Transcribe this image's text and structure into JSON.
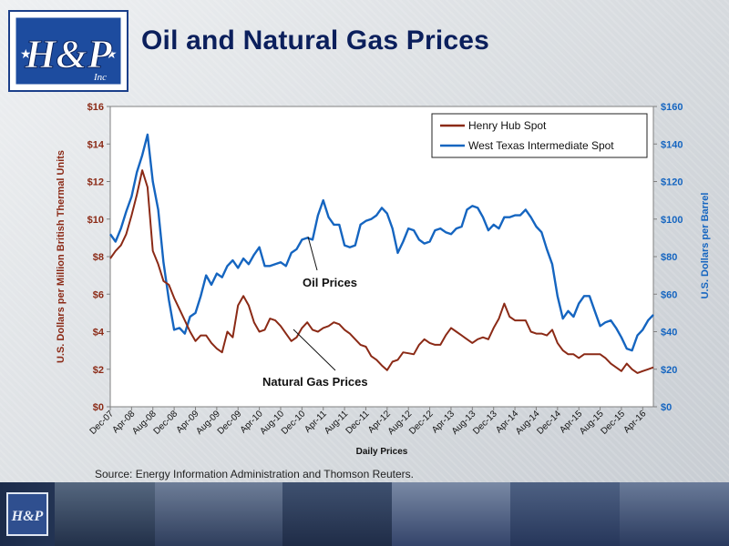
{
  "title": "Oil and Natural Gas Prices",
  "logo": {
    "main_text": "H&P",
    "small_text": "Inc"
  },
  "source": "Source:  Energy Information Administration and Thomson Reuters.",
  "colors": {
    "gas": "#8b2a16",
    "oil": "#1565c0",
    "title": "#0b1f5c",
    "left_axis": "#8b2a16",
    "right_axis": "#1565c0"
  },
  "annotations": {
    "oil": "Oil Prices",
    "gas": "Natural Gas Prices"
  },
  "chart_data": {
    "type": "line",
    "xlabel": "Daily Prices",
    "ylabel_left": "U.S. Dollars per Million British Thermal Units",
    "ylabel_right": "U.S. Dollars per Barrel",
    "ylim_left": [
      0,
      16
    ],
    "ylim_right": [
      0,
      160
    ],
    "yticks_left": [
      "$0",
      "$2",
      "$4",
      "$6",
      "$8",
      "$10",
      "$12",
      "$14",
      "$16"
    ],
    "yticks_right": [
      "$0",
      "$20",
      "$40",
      "$60",
      "$80",
      "$100",
      "$120",
      "$140",
      "$160"
    ],
    "x_ticks": [
      "Dec-07",
      "Apr-08",
      "Aug-08",
      "Dec-08",
      "Apr-09",
      "Aug-09",
      "Dec-09",
      "Apr-10",
      "Aug-10",
      "Dec-10",
      "Apr-11",
      "Aug-11",
      "Dec-11",
      "Apr-12",
      "Aug-12",
      "Dec-12",
      "Apr-13",
      "Aug-13",
      "Dec-13",
      "Apr-14",
      "Aug-14",
      "Dec-14",
      "Apr-15",
      "Aug-15",
      "Dec-15",
      "Apr-16"
    ],
    "legend_position": "top-right",
    "series": [
      {
        "name": "Henry Hub Spot",
        "axis": "left",
        "x": [
          "Dec-07",
          "Jan-08",
          "Feb-08",
          "Mar-08",
          "Apr-08",
          "May-08",
          "Jun-08",
          "Jul-08",
          "Aug-08",
          "Sep-08",
          "Oct-08",
          "Nov-08",
          "Dec-08",
          "Jan-09",
          "Feb-09",
          "Mar-09",
          "Apr-09",
          "May-09",
          "Jun-09",
          "Jul-09",
          "Aug-09",
          "Sep-09",
          "Oct-09",
          "Nov-09",
          "Dec-09",
          "Jan-10",
          "Feb-10",
          "Mar-10",
          "Apr-10",
          "May-10",
          "Jun-10",
          "Jul-10",
          "Aug-10",
          "Sep-10",
          "Oct-10",
          "Nov-10",
          "Dec-10",
          "Jan-11",
          "Feb-11",
          "Mar-11",
          "Apr-11",
          "May-11",
          "Jun-11",
          "Jul-11",
          "Aug-11",
          "Sep-11",
          "Oct-11",
          "Nov-11",
          "Dec-11",
          "Jan-12",
          "Feb-12",
          "Mar-12",
          "Apr-12",
          "May-12",
          "Jun-12",
          "Jul-12",
          "Aug-12",
          "Sep-12",
          "Oct-12",
          "Nov-12",
          "Dec-12",
          "Jan-13",
          "Feb-13",
          "Mar-13",
          "Apr-13",
          "May-13",
          "Jun-13",
          "Jul-13",
          "Aug-13",
          "Sep-13",
          "Oct-13",
          "Nov-13",
          "Dec-13",
          "Jan-14",
          "Feb-14",
          "Mar-14",
          "Apr-14",
          "May-14",
          "Jun-14",
          "Jul-14",
          "Aug-14",
          "Sep-14",
          "Oct-14",
          "Nov-14",
          "Dec-14",
          "Jan-15",
          "Feb-15",
          "Mar-15",
          "Apr-15",
          "May-15",
          "Jun-15",
          "Jul-15",
          "Aug-15",
          "Sep-15",
          "Oct-15",
          "Nov-15",
          "Dec-15",
          "Jan-16",
          "Feb-16",
          "Mar-16",
          "Apr-16",
          "May-16",
          "Jun-16"
        ],
        "values": [
          7.9,
          8.3,
          8.6,
          9.2,
          10.2,
          11.3,
          12.6,
          11.7,
          8.3,
          7.6,
          6.7,
          6.5,
          5.8,
          5.2,
          4.6,
          4.0,
          3.5,
          3.8,
          3.8,
          3.4,
          3.1,
          2.9,
          4.0,
          3.7,
          5.4,
          5.9,
          5.4,
          4.5,
          4.0,
          4.1,
          4.7,
          4.6,
          4.3,
          3.9,
          3.5,
          3.7,
          4.2,
          4.5,
          4.1,
          4.0,
          4.2,
          4.3,
          4.5,
          4.4,
          4.1,
          3.9,
          3.6,
          3.3,
          3.2,
          2.7,
          2.5,
          2.2,
          1.95,
          2.4,
          2.5,
          2.9,
          2.85,
          2.8,
          3.3,
          3.6,
          3.4,
          3.3,
          3.3,
          3.8,
          4.2,
          4.0,
          3.8,
          3.6,
          3.4,
          3.6,
          3.7,
          3.6,
          4.2,
          4.7,
          5.5,
          4.8,
          4.6,
          4.6,
          4.6,
          4.0,
          3.9,
          3.9,
          3.8,
          4.1,
          3.4,
          3.0,
          2.8,
          2.8,
          2.6,
          2.8,
          2.8,
          2.8,
          2.8,
          2.6,
          2.3,
          2.1,
          1.9,
          2.3,
          2.0,
          1.8,
          1.9,
          2.0,
          2.1
        ]
      },
      {
        "name": "West Texas Intermediate Spot",
        "axis": "right",
        "x": [
          "Dec-07",
          "Jan-08",
          "Feb-08",
          "Mar-08",
          "Apr-08",
          "May-08",
          "Jun-08",
          "Jul-08",
          "Aug-08",
          "Sep-08",
          "Oct-08",
          "Nov-08",
          "Dec-08",
          "Jan-09",
          "Feb-09",
          "Mar-09",
          "Apr-09",
          "May-09",
          "Jun-09",
          "Jul-09",
          "Aug-09",
          "Sep-09",
          "Oct-09",
          "Nov-09",
          "Dec-09",
          "Jan-10",
          "Feb-10",
          "Mar-10",
          "Apr-10",
          "May-10",
          "Jun-10",
          "Jul-10",
          "Aug-10",
          "Sep-10",
          "Oct-10",
          "Nov-10",
          "Dec-10",
          "Jan-11",
          "Feb-11",
          "Mar-11",
          "Apr-11",
          "May-11",
          "Jun-11",
          "Jul-11",
          "Aug-11",
          "Sep-11",
          "Oct-11",
          "Nov-11",
          "Dec-11",
          "Jan-12",
          "Feb-12",
          "Mar-12",
          "Apr-12",
          "May-12",
          "Jun-12",
          "Jul-12",
          "Aug-12",
          "Sep-12",
          "Oct-12",
          "Nov-12",
          "Dec-12",
          "Jan-13",
          "Feb-13",
          "Mar-13",
          "Apr-13",
          "May-13",
          "Jun-13",
          "Jul-13",
          "Aug-13",
          "Sep-13",
          "Oct-13",
          "Nov-13",
          "Dec-13",
          "Jan-14",
          "Feb-14",
          "Mar-14",
          "Apr-14",
          "May-14",
          "Jun-14",
          "Jul-14",
          "Aug-14",
          "Sep-14",
          "Oct-14",
          "Nov-14",
          "Dec-14",
          "Jan-15",
          "Feb-15",
          "Mar-15",
          "Apr-15",
          "May-15",
          "Jun-15",
          "Jul-15",
          "Aug-15",
          "Sep-15",
          "Oct-15",
          "Nov-15",
          "Dec-15",
          "Jan-16",
          "Feb-16",
          "Mar-16",
          "Apr-16",
          "May-16",
          "Jun-16"
        ],
        "values": [
          92,
          88,
          95,
          104,
          112,
          125,
          134,
          145,
          120,
          105,
          77,
          57,
          41,
          42,
          39,
          48,
          50,
          59,
          70,
          65,
          71,
          69,
          75,
          78,
          74,
          79,
          76,
          81,
          85,
          75,
          75,
          76,
          77,
          75,
          82,
          84,
          89,
          90,
          89,
          102,
          110,
          101,
          97,
          97,
          86,
          85,
          86,
          97,
          99,
          100,
          102,
          106,
          103,
          95,
          82,
          88,
          95,
          94,
          89,
          87,
          88,
          94,
          95,
          93,
          92,
          95,
          96,
          105,
          107,
          106,
          101,
          94,
          97,
          95,
          101,
          101,
          102,
          102,
          105,
          101,
          96,
          93,
          84,
          76,
          59,
          47,
          51,
          48,
          55,
          59,
          59,
          51,
          43,
          45,
          46,
          42,
          37,
          31,
          30,
          38,
          41,
          46,
          49
        ]
      }
    ]
  }
}
